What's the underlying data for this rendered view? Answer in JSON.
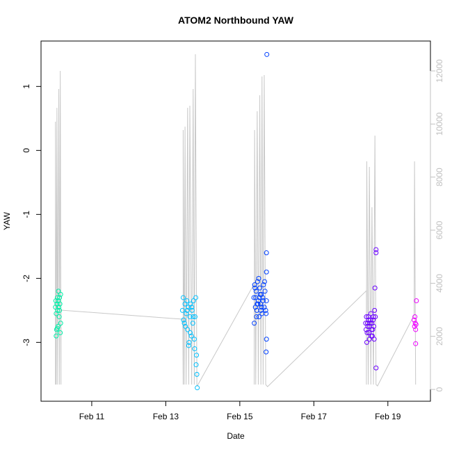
{
  "chart_data": {
    "type": "scatter",
    "title": "ATOM2 Northbound YAW",
    "x_label": "Date",
    "y_label": "YAW",
    "xlim": [
      9.63,
      20.15
    ],
    "xticks": [
      {
        "value": 11,
        "label": "Feb 11"
      },
      {
        "value": 13,
        "label": "Feb 13"
      },
      {
        "value": 15,
        "label": "Feb 15"
      },
      {
        "value": 17,
        "label": "Feb 17"
      },
      {
        "value": 19,
        "label": "Feb 19"
      }
    ],
    "ylim": [
      -3.92,
      1.71
    ],
    "yticks": [
      -3,
      -2,
      -1,
      0,
      1
    ],
    "y2lim": [
      -445,
      13127
    ],
    "y2ticks": [
      0,
      2000,
      4000,
      6000,
      8000,
      10000,
      12000
    ],
    "series": [
      {
        "color": "#00f0a8",
        "x": [
          10.02,
          10.03,
          10.04,
          10.05,
          10.06,
          10.07,
          10.08,
          10.09,
          10.1,
          10.11,
          10.12,
          10.13,
          10.14,
          10.15,
          10.16,
          10.04,
          10.07,
          10.1,
          10.13,
          10.16
        ],
        "values": [
          -2.45,
          -2.35,
          -2.55,
          -2.8,
          -2.4,
          -2.3,
          -2.5,
          -2.75,
          -2.2,
          -2.45,
          -2.6,
          -2.3,
          -2.4,
          -2.85,
          -2.25,
          -2.9,
          -2.78,
          -2.35,
          -2.5,
          -2.7
        ]
      },
      {
        "color": "#00c0ff",
        "x": [
          13.45,
          13.47,
          13.5,
          13.52,
          13.55,
          13.57,
          13.59,
          13.61,
          13.63,
          13.65,
          13.67,
          13.69,
          13.71,
          13.73,
          13.75,
          13.77,
          13.79,
          13.81,
          13.83,
          13.85,
          13.48,
          13.53,
          13.58,
          13.62,
          13.66,
          13.7,
          13.74,
          13.78,
          13.82,
          13.84
        ],
        "values": [
          -2.5,
          -2.3,
          -2.7,
          -2.4,
          -2.55,
          -2.35,
          -2.8,
          -2.45,
          -3.0,
          -2.6,
          -2.4,
          -2.9,
          -2.5,
          -2.7,
          -2.35,
          -2.95,
          -2.6,
          -2.3,
          -3.2,
          -3.71,
          -2.65,
          -2.75,
          -2.5,
          -3.05,
          -2.85,
          -2.45,
          -2.6,
          -3.1,
          -3.35,
          -3.5
        ]
      },
      {
        "color": "#0040ff",
        "x": [
          15.38,
          15.4,
          15.42,
          15.44,
          15.46,
          15.48,
          15.5,
          15.52,
          15.54,
          15.56,
          15.58,
          15.6,
          15.62,
          15.64,
          15.66,
          15.68,
          15.7,
          15.72,
          15.39,
          15.43,
          15.47,
          15.51,
          15.55,
          15.59,
          15.63,
          15.67,
          15.71,
          15.41,
          15.45,
          15.49,
          15.53,
          15.57,
          15.73,
          15.72,
          15.72,
          15.72,
          15.71
        ],
        "values": [
          -2.3,
          -2.1,
          -2.45,
          -2.2,
          -2.5,
          -2.05,
          -2.35,
          -2.6,
          -2.15,
          -2.4,
          -2.25,
          -2.55,
          -2.3,
          -2.1,
          -2.45,
          -2.2,
          -2.5,
          -2.35,
          -2.7,
          -2.3,
          -2.4,
          -2.0,
          -2.25,
          -2.45,
          -2.35,
          -2.05,
          -2.55,
          -2.15,
          -2.6,
          -2.4,
          -2.3,
          -2.5,
          1.5,
          -1.6,
          -1.9,
          -2.95,
          -3.15
        ]
      },
      {
        "color": "#6a00ff",
        "x": [
          18.4,
          18.42,
          18.44,
          18.46,
          18.48,
          18.5,
          18.52,
          18.54,
          18.56,
          18.58,
          18.6,
          18.62,
          18.64,
          18.66,
          18.41,
          18.43,
          18.45,
          18.47,
          18.49,
          18.51,
          18.53,
          18.55,
          18.57,
          18.59,
          18.61,
          18.63,
          18.65,
          18.68,
          18.68,
          18.68
        ],
        "values": [
          -2.7,
          -2.6,
          -2.85,
          -2.75,
          -2.65,
          -2.95,
          -2.7,
          -2.55,
          -2.8,
          -2.9,
          -2.65,
          -2.75,
          -2.5,
          -2.6,
          -2.8,
          -3.0,
          -2.7,
          -2.6,
          -2.85,
          -2.75,
          -2.65,
          -2.9,
          -2.7,
          -2.8,
          -2.6,
          -2.95,
          -2.15,
          -1.55,
          -1.6,
          -3.4
        ]
      },
      {
        "color": "#ee00ff",
        "x": [
          19.71,
          19.72,
          19.73,
          19.74,
          19.75,
          19.76,
          19.77,
          19.75
        ],
        "values": [
          -2.65,
          -2.75,
          -2.6,
          -2.7,
          -2.8,
          -2.72,
          -2.35,
          -3.02
        ]
      },
      {
        "color": "#c8c8c8",
        "type": "line",
        "axis": "y2",
        "x": [
          10.02,
          10.02,
          10.04,
          10.06,
          10.08,
          10.11,
          10.13,
          10.15,
          10.17,
          10.17,
          13.46,
          13.47,
          13.47,
          13.5,
          13.52,
          13.55,
          13.59,
          13.62,
          13.65,
          13.7,
          13.74,
          13.77,
          13.8,
          13.84,
          13.85,
          15.39,
          15.39,
          15.4,
          15.43,
          15.47,
          15.5,
          15.54,
          15.57,
          15.6,
          15.63,
          15.66,
          15.7,
          15.75,
          18.42,
          18.42,
          18.43,
          18.47,
          18.5,
          18.54,
          18.57,
          18.61,
          18.65,
          18.68,
          18.72,
          19.71,
          19.72,
          19.75
        ],
        "values": [
          183,
          10087,
          183,
          10610,
          183,
          11318,
          183,
          12000,
          183,
          2987,
          2646,
          183,
          9773,
          183,
          9900,
          183,
          10610,
          183,
          10690,
          183,
          11318,
          183,
          12629,
          183,
          131,
          3982,
          183,
          9773,
          183,
          10480,
          183,
          11082,
          183,
          11790,
          183,
          11842,
          183,
          105,
          3720,
          183,
          8594,
          183,
          8384,
          183,
          6865,
          183,
          9563,
          183,
          131,
          2803,
          8594,
          183
        ]
      }
    ]
  }
}
